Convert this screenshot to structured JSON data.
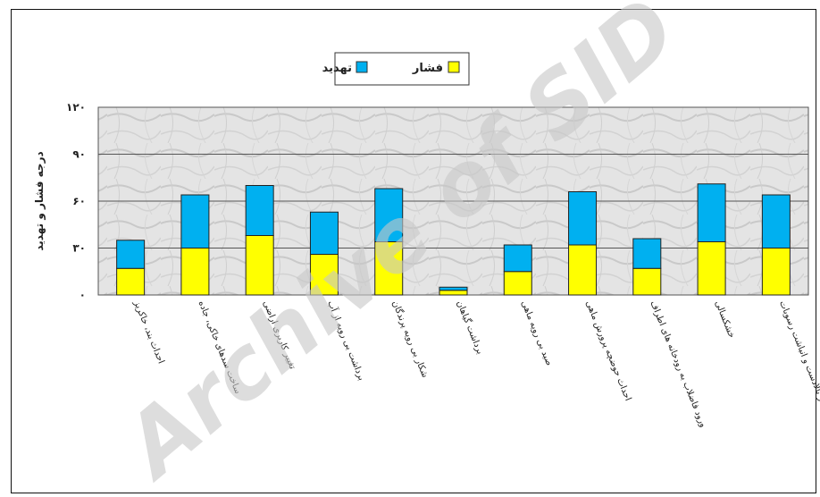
{
  "chart_data": {
    "type": "bar",
    "stacked": true,
    "title": "",
    "xlabel": "",
    "ylabel": "درجه فشار و تهدید",
    "ylim": [
      0,
      120
    ],
    "yticks": [
      "۰",
      "۳۰",
      "۶۰",
      "۹۰",
      "۱۲۰"
    ],
    "ytick_values": [
      0,
      30,
      60,
      90,
      120
    ],
    "grid": true,
    "legend_position": "top-center",
    "categories": [
      "احداث بند، خاکریز",
      "ساخت سدهای خاکی، جاده",
      "تغییر کاربری اراضی",
      "برداشت بی رویه از آب",
      "شکار بی رویه پرندگان",
      "برداشت گیاهان",
      "صید بی رویه ماهی",
      "احداث حوضچه پرورش ماهی",
      "ورود فاضلاب به رودخانه های اطراف",
      "خشکسالی",
      "فرسایش در بالادست و انباشت رسوبات"
    ],
    "series": [
      {
        "name": "فشار",
        "color": "#ffff00",
        "values": [
          17,
          30,
          38,
          26,
          34,
          3,
          15,
          32,
          17,
          34,
          30
        ]
      },
      {
        "name": "تهدید",
        "color": "#00b0f0",
        "values": [
          18,
          34,
          32,
          27,
          34,
          2,
          17,
          34,
          19,
          37,
          34
        ]
      }
    ]
  },
  "watermark": "Archive of SID"
}
